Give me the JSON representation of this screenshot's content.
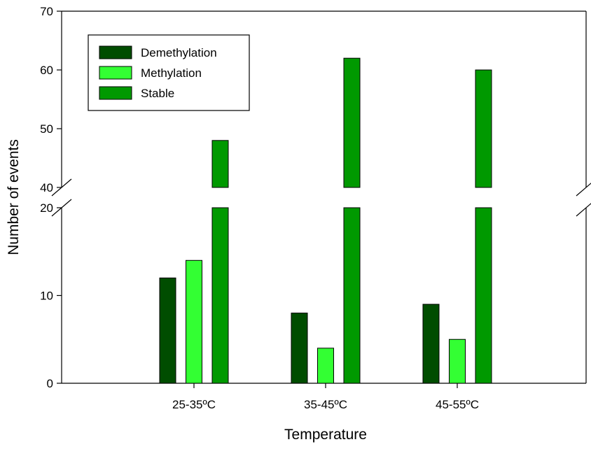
{
  "chart_data": {
    "type": "bar",
    "title": "",
    "xlabel": "Temperature",
    "ylabel": "Number of events",
    "categories": [
      "25-35ºC",
      "35-45ºC",
      "45-55ºC"
    ],
    "series": [
      {
        "name": "Demethylation",
        "values": [
          12,
          8,
          9
        ],
        "color": "#004d00"
      },
      {
        "name": "Methylation",
        "values": [
          14,
          4,
          5
        ],
        "color": "#33ff33"
      },
      {
        "name": "Stable",
        "values": [
          48,
          62,
          60
        ],
        "color": "#009900"
      }
    ],
    "axis_break": {
      "lower": 20,
      "upper": 40
    },
    "ylim_lower_segment": [
      0,
      20
    ],
    "ylim_upper_segment": [
      40,
      70
    ],
    "yticks": [
      0,
      10,
      20,
      40,
      50,
      60,
      70
    ],
    "legend_position": "top-left",
    "grid": false
  }
}
